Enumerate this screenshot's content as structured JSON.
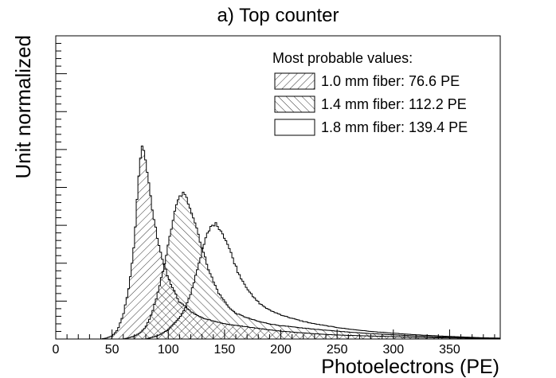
{
  "chart_data": {
    "type": "histogram",
    "title": "a) Top counter",
    "xlabel": "Photoelectrons (PE)",
    "ylabel": "Unit normalized",
    "xlim": [
      0,
      395
    ],
    "ylim": [
      0,
      1.0
    ],
    "x_ticks": [
      0,
      50,
      100,
      150,
      200,
      250,
      300,
      350
    ],
    "legend": {
      "title": "Most probable values:",
      "position": "top-right"
    },
    "series": [
      {
        "name": "1.0 mm fiber: 76.6 PE",
        "fill": "diagonal-hatch-forward",
        "most_probable_value": 76.6,
        "points": [
          [
            40,
            0
          ],
          [
            45,
            0.003
          ],
          [
            50,
            0.01
          ],
          [
            55,
            0.03
          ],
          [
            60,
            0.08
          ],
          [
            65,
            0.17
          ],
          [
            70,
            0.32
          ],
          [
            72,
            0.44
          ],
          [
            74,
            0.56
          ],
          [
            76,
            0.62
          ],
          [
            77,
            0.635
          ],
          [
            78,
            0.63
          ],
          [
            80,
            0.59
          ],
          [
            83,
            0.5
          ],
          [
            86,
            0.42
          ],
          [
            90,
            0.34
          ],
          [
            95,
            0.26
          ],
          [
            100,
            0.2
          ],
          [
            105,
            0.16
          ],
          [
            110,
            0.12
          ],
          [
            115,
            0.11
          ],
          [
            120,
            0.09
          ],
          [
            130,
            0.07
          ],
          [
            140,
            0.06
          ],
          [
            150,
            0.05
          ],
          [
            160,
            0.045
          ],
          [
            170,
            0.04
          ],
          [
            180,
            0.035
          ],
          [
            190,
            0.03
          ],
          [
            200,
            0.026
          ],
          [
            220,
            0.02
          ],
          [
            240,
            0.015
          ],
          [
            260,
            0.012
          ],
          [
            280,
            0.01
          ],
          [
            300,
            0.008
          ],
          [
            320,
            0.005
          ],
          [
            340,
            0.004
          ],
          [
            360,
            0.003
          ],
          [
            380,
            0.002
          ],
          [
            395,
            0.001
          ]
        ]
      },
      {
        "name": "1.4 mm fiber: 112.2 PE",
        "fill": "diagonal-hatch-backward",
        "most_probable_value": 112.2,
        "points": [
          [
            60,
            0
          ],
          [
            65,
            0.004
          ],
          [
            70,
            0.01
          ],
          [
            75,
            0.02
          ],
          [
            80,
            0.04
          ],
          [
            85,
            0.08
          ],
          [
            90,
            0.14
          ],
          [
            95,
            0.22
          ],
          [
            100,
            0.31
          ],
          [
            104,
            0.39
          ],
          [
            108,
            0.45
          ],
          [
            111,
            0.475
          ],
          [
            113,
            0.48
          ],
          [
            116,
            0.465
          ],
          [
            120,
            0.43
          ],
          [
            125,
            0.37
          ],
          [
            130,
            0.3
          ],
          [
            135,
            0.24
          ],
          [
            140,
            0.19
          ],
          [
            145,
            0.15
          ],
          [
            150,
            0.125
          ],
          [
            155,
            0.1
          ],
          [
            160,
            0.085
          ],
          [
            170,
            0.07
          ],
          [
            180,
            0.058
          ],
          [
            190,
            0.05
          ],
          [
            200,
            0.044
          ],
          [
            220,
            0.036
          ],
          [
            240,
            0.029
          ],
          [
            260,
            0.023
          ],
          [
            280,
            0.018
          ],
          [
            300,
            0.014
          ],
          [
            320,
            0.01
          ],
          [
            340,
            0.007
          ],
          [
            360,
            0.005
          ],
          [
            380,
            0.003
          ],
          [
            395,
            0.002
          ]
        ]
      },
      {
        "name": "1.8 mm fiber: 139.4 PE",
        "fill": "none",
        "most_probable_value": 139.4,
        "points": [
          [
            80,
            0
          ],
          [
            90,
            0.01
          ],
          [
            100,
            0.03
          ],
          [
            110,
            0.07
          ],
          [
            115,
            0.1
          ],
          [
            120,
            0.15
          ],
          [
            125,
            0.22
          ],
          [
            130,
            0.29
          ],
          [
            134,
            0.34
          ],
          [
            138,
            0.37
          ],
          [
            141,
            0.38
          ],
          [
            144,
            0.375
          ],
          [
            148,
            0.35
          ],
          [
            152,
            0.32
          ],
          [
            157,
            0.27
          ],
          [
            162,
            0.22
          ],
          [
            168,
            0.18
          ],
          [
            175,
            0.14
          ],
          [
            182,
            0.115
          ],
          [
            190,
            0.095
          ],
          [
            200,
            0.08
          ],
          [
            210,
            0.068
          ],
          [
            220,
            0.058
          ],
          [
            230,
            0.05
          ],
          [
            240,
            0.044
          ],
          [
            250,
            0.038
          ],
          [
            260,
            0.033
          ],
          [
            270,
            0.029
          ],
          [
            280,
            0.025
          ],
          [
            290,
            0.022
          ],
          [
            300,
            0.019
          ],
          [
            320,
            0.014
          ],
          [
            340,
            0.01
          ],
          [
            360,
            0.007
          ],
          [
            380,
            0.004
          ],
          [
            395,
            0.003
          ]
        ]
      }
    ]
  }
}
